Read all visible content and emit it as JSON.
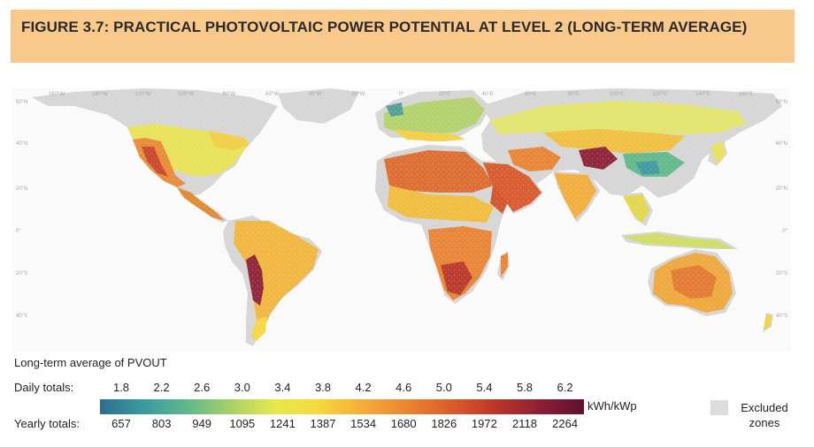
{
  "figure": {
    "title": "FIGURE 3.7: PRACTICAL PHOTOVOLTAIC POWER POTENTIAL AT LEVEL 2 (LONG-TERM AVERAGE)"
  },
  "map": {
    "longitude_ticks": [
      "160°W",
      "140°W",
      "120°W",
      "100°W",
      "80°W",
      "60°W",
      "40°W",
      "20°W",
      "0°",
      "20°E",
      "40°E",
      "60°E",
      "80°E",
      "100°E",
      "120°E",
      "140°E",
      "160°E"
    ],
    "latitude_ticks": [
      "60°N",
      "40°N",
      "20°N",
      "0°",
      "20°S",
      "40°S"
    ]
  },
  "legend": {
    "title": "Long-term average of PVOUT",
    "daily_label": "Daily totals:",
    "yearly_label": "Yearly totals:",
    "daily_values": [
      "1.8",
      "2.2",
      "2.6",
      "3.0",
      "3.4",
      "3.8",
      "4.2",
      "4.6",
      "5.0",
      "5.4",
      "5.8",
      "6.2"
    ],
    "yearly_values": [
      "657",
      "803",
      "949",
      "1095",
      "1241",
      "1387",
      "1534",
      "1680",
      "1826",
      "1972",
      "2118",
      "2264"
    ],
    "unit": "kWh/kWp",
    "excluded_label": "Excluded zones"
  },
  "colors": {
    "title_background": "#f9c98c",
    "excluded": "#dcdcdc",
    "scale_low": "#2d6e8e",
    "scale_mid": "#f6d93e",
    "scale_high": "#5e1030"
  }
}
